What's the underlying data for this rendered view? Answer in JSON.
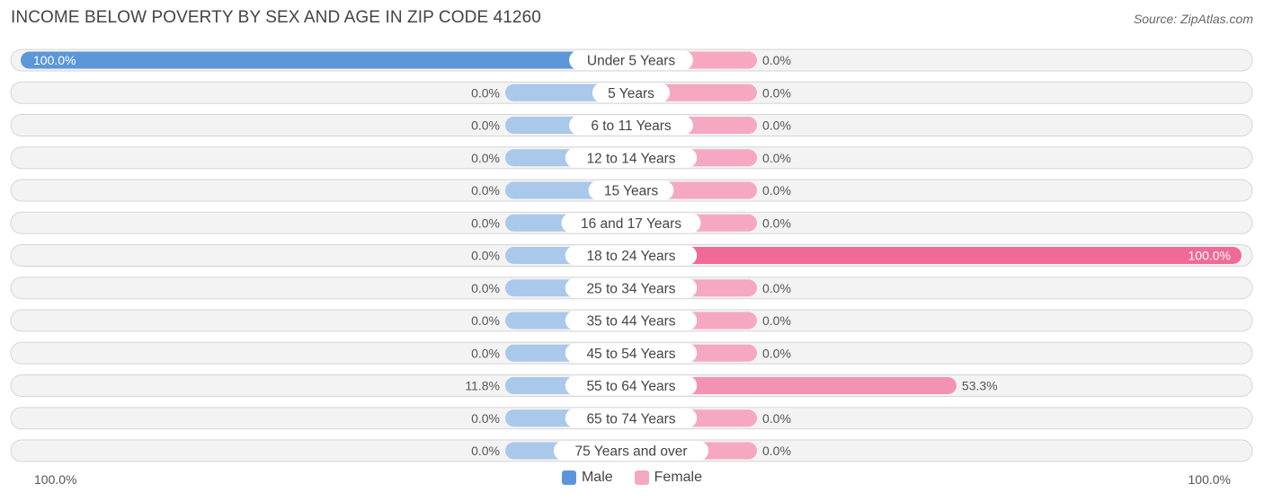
{
  "header": {
    "title": "INCOME BELOW POVERTY BY SEX AND AGE IN ZIP CODE 41260",
    "source": "Source: ZipAtlas.com"
  },
  "colors": {
    "male_strong": "#5b97d8",
    "male_light": "#aac8ea",
    "female_strong": "#f06a95",
    "female_light": "#f6a8c1",
    "row_border": "#d6d6d6",
    "row_bg": "#f3f3f3"
  },
  "chart_data": {
    "type": "bar",
    "orientation": "horizontal-diverging",
    "categories": [
      "Under 5 Years",
      "5 Years",
      "6 to 11 Years",
      "12 to 14 Years",
      "15 Years",
      "16 and 17 Years",
      "18 to 24 Years",
      "25 to 34 Years",
      "35 to 44 Years",
      "45 to 54 Years",
      "55 to 64 Years",
      "65 to 74 Years",
      "75 Years and over"
    ],
    "series": [
      {
        "name": "Male",
        "values": [
          100.0,
          0.0,
          0.0,
          0.0,
          0.0,
          0.0,
          0.0,
          0.0,
          0.0,
          0.0,
          11.8,
          0.0,
          0.0
        ],
        "labels": [
          "100.0%",
          "0.0%",
          "0.0%",
          "0.0%",
          "0.0%",
          "0.0%",
          "0.0%",
          "0.0%",
          "0.0%",
          "0.0%",
          "11.8%",
          "0.0%",
          "0.0%"
        ]
      },
      {
        "name": "Female",
        "values": [
          0.0,
          0.0,
          0.0,
          0.0,
          0.0,
          0.0,
          100.0,
          0.0,
          0.0,
          0.0,
          53.3,
          0.0,
          0.0
        ],
        "labels": [
          "0.0%",
          "0.0%",
          "0.0%",
          "0.0%",
          "0.0%",
          "0.0%",
          "100.0%",
          "0.0%",
          "0.0%",
          "0.0%",
          "53.3%",
          "0.0%",
          "0.0%"
        ]
      }
    ],
    "xlim": [
      -100,
      100
    ],
    "axis_left_label": "100.0%",
    "axis_right_label": "100.0%",
    "legend_position": "bottom-center"
  }
}
